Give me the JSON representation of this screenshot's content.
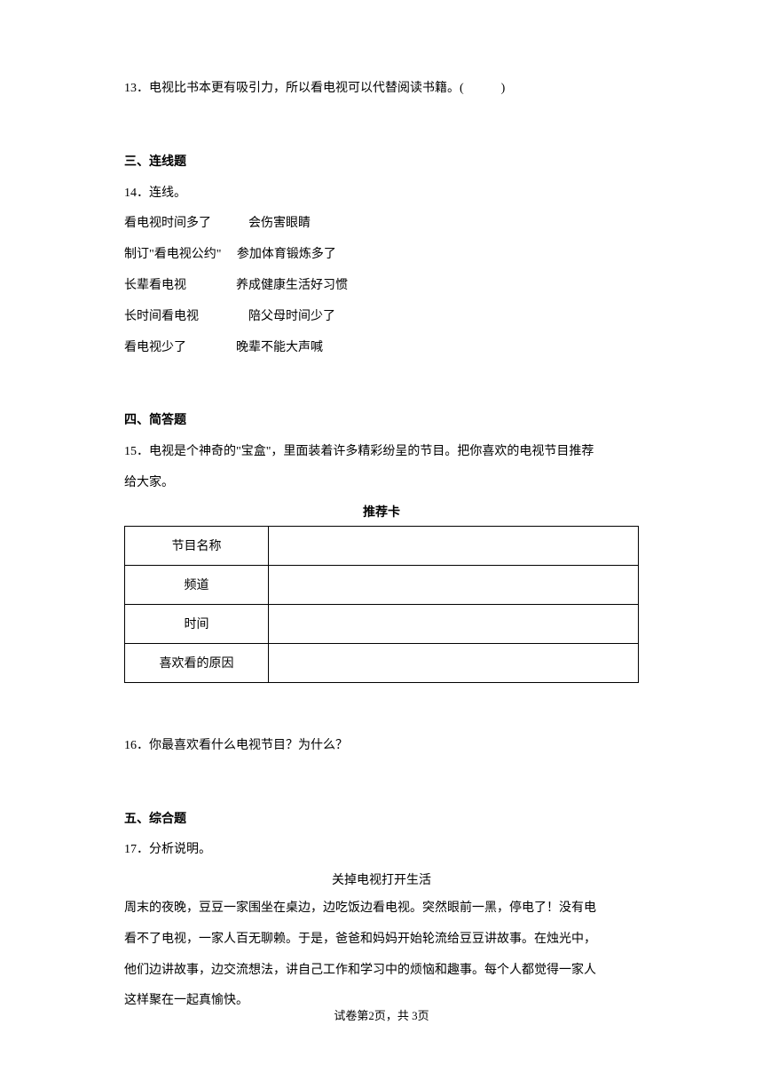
{
  "q13": {
    "text": "13．电视比书本更有吸引力，所以看电视可以代替阅读书籍。(　　　)"
  },
  "section3": {
    "heading": "三、连线题",
    "q14": {
      "intro": "14．连线。",
      "lines": [
        "看电视时间多了　　　会伤害眼睛",
        "制订\"看电视公约\"　  参加体育锻炼多了",
        "长辈看电视　　　　养成健康生活好习惯",
        "长时间看电视　　　　陪父母时间少了",
        "看电视少了　　　　晚辈不能大声喊"
      ]
    }
  },
  "section4": {
    "heading": "四、简答题",
    "q15": {
      "line1": "15．电视是个神奇的\"宝盒\"，里面装着许多精彩纷呈的节目。把你喜欢的电视节目推荐",
      "line2": "给大家。",
      "table_title": "推荐卡",
      "rows": {
        "r1": {
          "label": "节目名称",
          "value": ""
        },
        "r2": {
          "label": "频道",
          "value": ""
        },
        "r3": {
          "label": "时间",
          "value": ""
        },
        "r4": {
          "label": "喜欢看的原因",
          "value": ""
        }
      }
    },
    "q16": {
      "text": "16．你最喜欢看什么电视节目？为什么？"
    }
  },
  "section5": {
    "heading": "五、综合题",
    "q17": {
      "intro": "17．分析说明。",
      "subtitle": "关掉电视打开生活",
      "para": [
        "周末的夜晚，豆豆一家围坐在桌边，边吃饭边看电视。突然眼前一黑，停电了！没有电",
        "看不了电视，一家人百无聊赖。于是，爸爸和妈妈开始轮流给豆豆讲故事。在烛光中，",
        "他们边讲故事，边交流想法，讲自己工作和学习中的烦恼和趣事。每个人都觉得一家人",
        "这样聚在一起真愉快。"
      ]
    }
  },
  "footer": {
    "text": "试卷第2页，共 3页"
  }
}
